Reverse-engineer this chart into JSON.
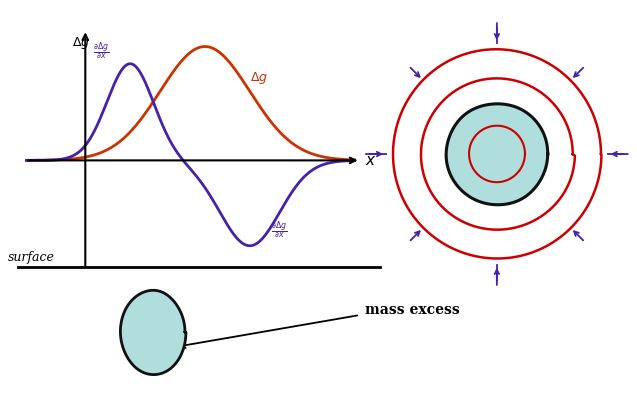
{
  "bg_color": "#ffffff",
  "orange_color": "#cc3300",
  "purple_color": "#4422aa",
  "red_color": "#cc0000",
  "teal_color": "#b0dedd",
  "black_color": "#111111",
  "surface_text": "surface",
  "mass_excess_text": "mass excess",
  "x_label": "x"
}
